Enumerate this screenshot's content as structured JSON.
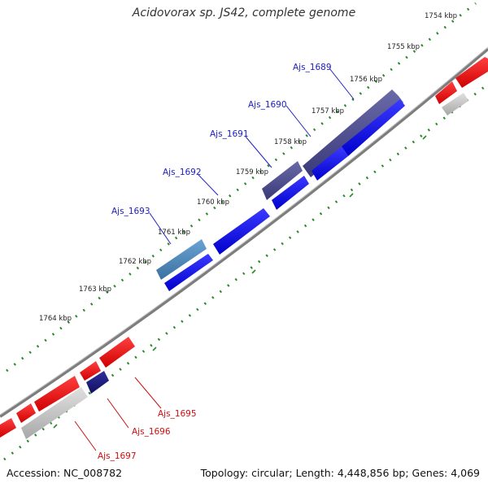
{
  "header": {
    "title": "Acidovorax sp. JS42, complete genome"
  },
  "footer": {
    "accession": "Accession: NC_008782",
    "summary": "Topology: circular; Length: 4,448,856 bp; Genes: 4,069"
  },
  "colors": {
    "backbone": "#808080",
    "tick_dots": "#2a8a2a",
    "forward_gene": "#0000ee",
    "forward_gene_slate": "#4b4b8f",
    "forward_gene_steel": "#4a86b8",
    "reverse_gene": "#ee0000",
    "reverse_gene_navy": "#1a1a80",
    "pseudo_gene": "#c0c0c0",
    "label_forward": "#2020c0",
    "label_reverse": "#cc1010",
    "kbp_label": "#222222"
  },
  "scale_labels": [
    "1754 kbp",
    "1755 kbp",
    "1756 kbp",
    "1757 kbp",
    "1758 kbp",
    "1759 kbp",
    "1760 kbp",
    "1761 kbp",
    "1762 kbp",
    "1763 kbp",
    "1764 kbp"
  ],
  "gene_labels": [
    {
      "text": "Ajs_1689",
      "strand": "forward"
    },
    {
      "text": "Ajs_1690",
      "strand": "forward"
    },
    {
      "text": "Ajs_1691",
      "strand": "forward"
    },
    {
      "text": "Ajs_1692",
      "strand": "forward"
    },
    {
      "text": "Ajs_1693",
      "strand": "forward"
    },
    {
      "text": "Ajs_1695",
      "strand": "reverse"
    },
    {
      "text": "Ajs_1696",
      "strand": "reverse"
    },
    {
      "text": "Ajs_1697",
      "strand": "reverse"
    }
  ]
}
